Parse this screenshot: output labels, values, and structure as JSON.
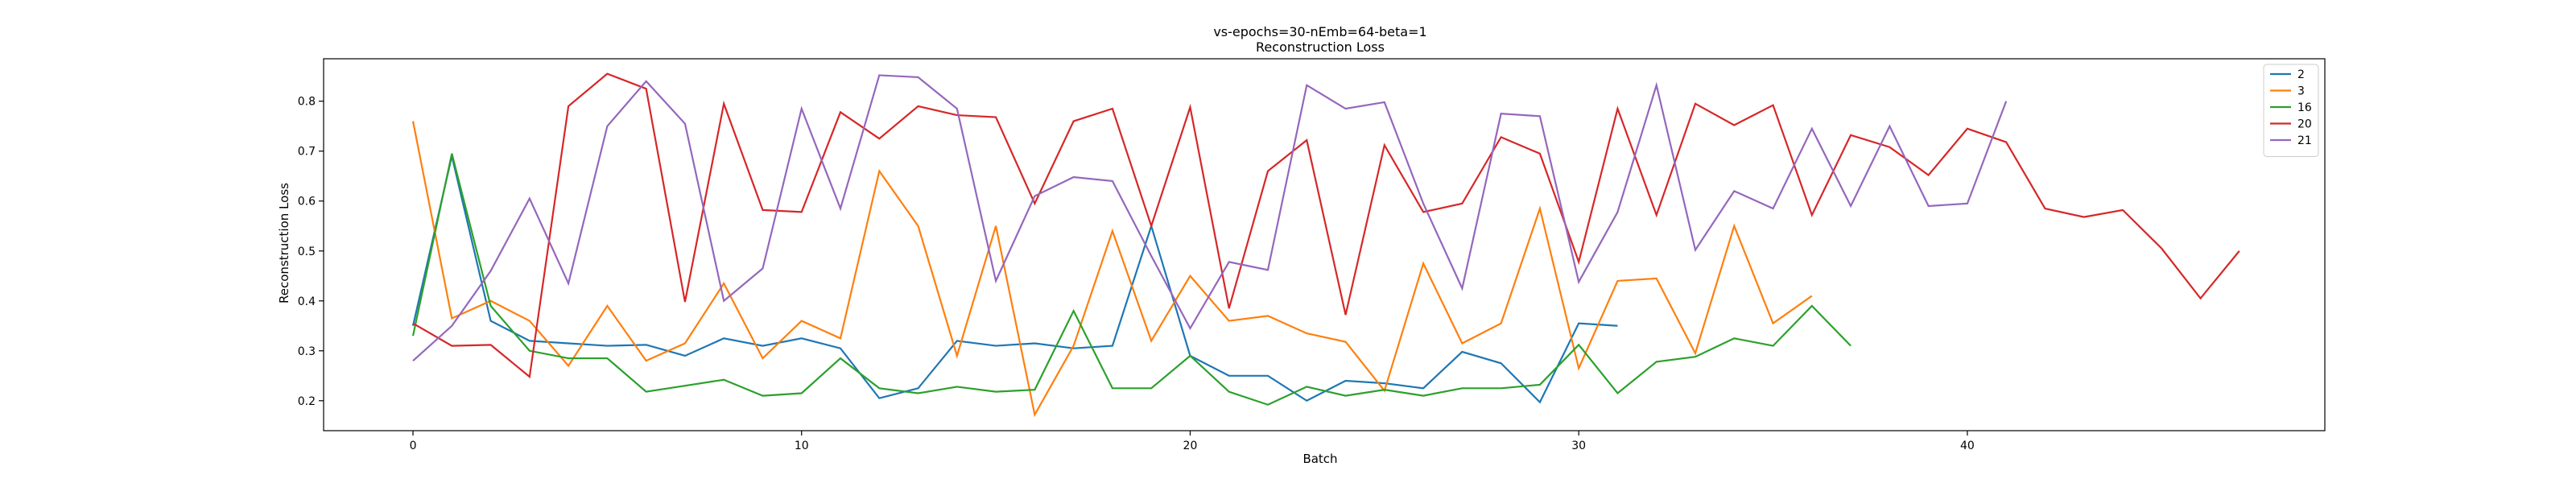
{
  "chart_data": {
    "type": "line",
    "title": "vs-epochs=30-nEmb=64-beta=1",
    "subtitle": "Reconstruction Loss",
    "xlabel": "Batch",
    "ylabel": "Reconstruction Loss",
    "xlim": [
      -2.3,
      49.2
    ],
    "ylim": [
      0.14,
      0.885
    ],
    "xticks": [
      0,
      10,
      20,
      30,
      40
    ],
    "yticks": [
      0.2,
      0.3,
      0.4,
      0.5,
      0.6,
      0.7,
      0.8
    ],
    "grid": false,
    "legend": "top-right",
    "series": [
      {
        "name": "2",
        "color": "#1f77b4",
        "values": [
          0.35,
          0.69,
          0.36,
          0.32,
          0.315,
          0.31,
          0.312,
          0.29,
          0.325,
          0.31,
          0.325,
          0.305,
          0.205,
          0.225,
          0.32,
          0.31,
          0.315,
          0.305,
          0.31,
          0.55,
          0.29,
          0.25,
          0.25,
          0.2,
          0.24,
          0.235,
          0.225,
          0.298,
          0.275,
          0.197,
          0.355,
          0.35
        ]
      },
      {
        "name": "3",
        "color": "#ff7f0e",
        "values": [
          0.76,
          0.365,
          0.4,
          0.36,
          0.27,
          0.39,
          0.28,
          0.315,
          0.435,
          0.285,
          0.36,
          0.325,
          0.66,
          0.55,
          0.29,
          0.55,
          0.172,
          0.31,
          0.54,
          0.32,
          0.45,
          0.36,
          0.37,
          0.335,
          0.318,
          0.22,
          0.475,
          0.315,
          0.355,
          0.585,
          0.265,
          0.44,
          0.445,
          0.295,
          0.55,
          0.355,
          0.41
        ]
      },
      {
        "name": "16",
        "color": "#2ca02c",
        "values": [
          0.33,
          0.695,
          0.39,
          0.3,
          0.285,
          0.285,
          0.218,
          0.23,
          0.242,
          0.21,
          0.215,
          0.285,
          0.225,
          0.215,
          0.228,
          0.218,
          0.222,
          0.38,
          0.225,
          0.225,
          0.29,
          0.218,
          0.192,
          0.228,
          0.21,
          0.222,
          0.21,
          0.225,
          0.225,
          0.232,
          0.312,
          0.215,
          0.278,
          0.288,
          0.325,
          0.31,
          0.39,
          0.31
        ]
      },
      {
        "name": "20",
        "color": "#d62728",
        "values": [
          0.355,
          0.31,
          0.312,
          0.248,
          0.79,
          0.855,
          0.825,
          0.398,
          0.795,
          0.582,
          0.578,
          0.778,
          0.725,
          0.79,
          0.772,
          0.768,
          0.595,
          0.76,
          0.785,
          0.55,
          0.788,
          0.385,
          0.66,
          0.722,
          0.372,
          0.712,
          0.578,
          0.595,
          0.728,
          0.695,
          0.478,
          0.785,
          0.572,
          0.795,
          0.752,
          0.792,
          0.572,
          0.732,
          0.708,
          0.652,
          0.745,
          0.718,
          0.585,
          0.568,
          0.582,
          0.505,
          0.405,
          0.5
        ]
      },
      {
        "name": "21",
        "color": "#9467bd",
        "values": [
          0.28,
          0.35,
          0.46,
          0.605,
          0.435,
          0.75,
          0.84,
          0.755,
          0.4,
          0.465,
          0.785,
          0.585,
          0.852,
          0.848,
          0.785,
          0.44,
          0.61,
          0.648,
          0.64,
          0.49,
          0.345,
          0.478,
          0.462,
          0.832,
          0.785,
          0.798,
          0.595,
          0.425,
          0.775,
          0.77,
          0.438,
          0.578,
          0.832,
          0.502,
          0.62,
          0.585,
          0.745,
          0.59,
          0.75,
          0.59,
          0.595,
          0.8
        ]
      }
    ]
  }
}
